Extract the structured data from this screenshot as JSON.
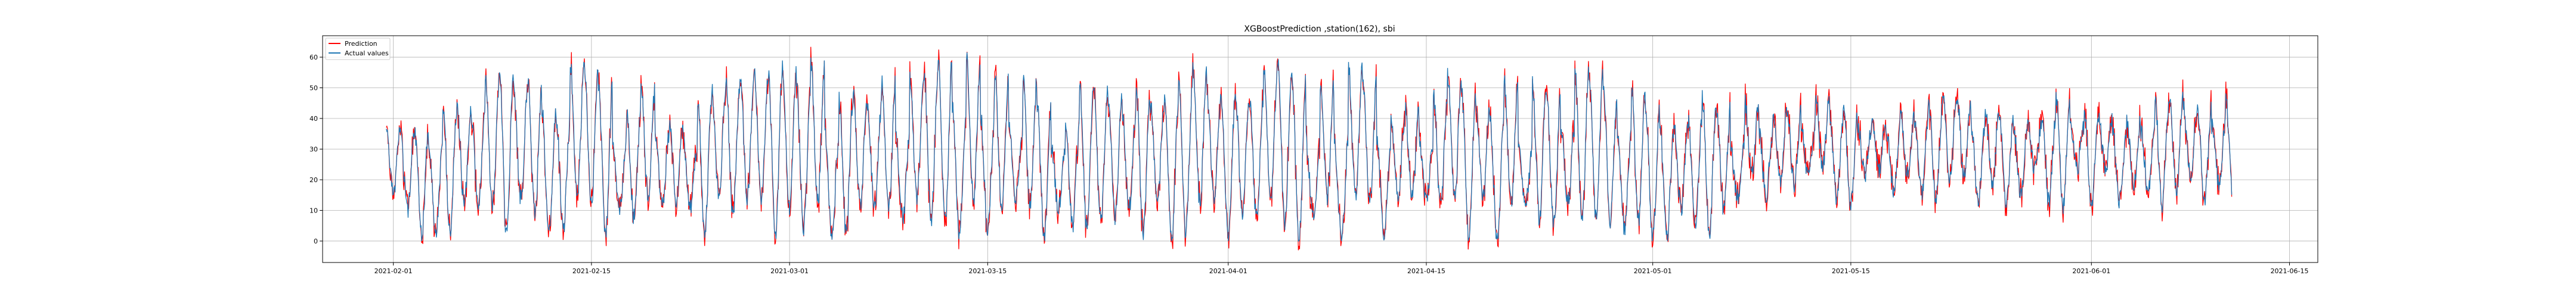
{
  "chart_data": {
    "type": "line",
    "title": "XGBoostPrediction ,station(162), sbi",
    "xlabel": "",
    "ylabel": "",
    "x_range": [
      "2021-01-27",
      "2021-06-17"
    ],
    "ylim": [
      -7,
      67
    ],
    "x_ticks": [
      "2021-02-01",
      "2021-02-15",
      "2021-03-01",
      "2021-03-15",
      "2021-04-01",
      "2021-04-15",
      "2021-05-01",
      "2021-05-15",
      "2021-06-01",
      "2021-06-15"
    ],
    "y_ticks": [
      0,
      10,
      20,
      30,
      40,
      50,
      60
    ],
    "grid": true,
    "legend_position": "upper-left",
    "series": [
      {
        "name": "Prediction",
        "color": "#ff0000"
      },
      {
        "name": "Actual values",
        "color": "#1f77b4"
      }
    ],
    "data_start": "2021-01-31T12:00",
    "data_end": "2021-06-10T22:00",
    "step_hours": 1,
    "summary": {
      "min_value": -3,
      "max_value": 64,
      "typical_cycle": "daily oscillation between ~0 and ~45-60"
    }
  }
}
